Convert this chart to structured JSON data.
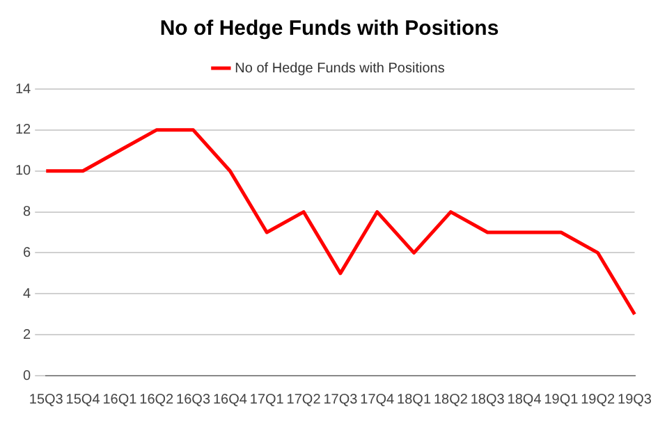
{
  "chart_data": {
    "type": "line",
    "title": "No of Hedge Funds with Positions",
    "categories": [
      "15Q3",
      "15Q4",
      "16Q1",
      "16Q2",
      "16Q3",
      "16Q4",
      "17Q1",
      "17Q2",
      "17Q3",
      "17Q4",
      "18Q1",
      "18Q2",
      "18Q3",
      "18Q4",
      "19Q1",
      "19Q2",
      "19Q3"
    ],
    "series": [
      {
        "name": "No of Hedge Funds with Positions",
        "color": "#ff0000",
        "values": [
          10,
          10,
          11,
          12,
          12,
          10,
          7,
          8,
          5,
          8,
          6,
          8,
          7,
          7,
          7,
          6,
          3
        ]
      }
    ],
    "ylim": [
      0,
      14
    ],
    "yticks": [
      0,
      2,
      4,
      6,
      8,
      10,
      12,
      14
    ],
    "grid": "y",
    "legend": "top",
    "marker": "none",
    "line_style": "solid"
  }
}
